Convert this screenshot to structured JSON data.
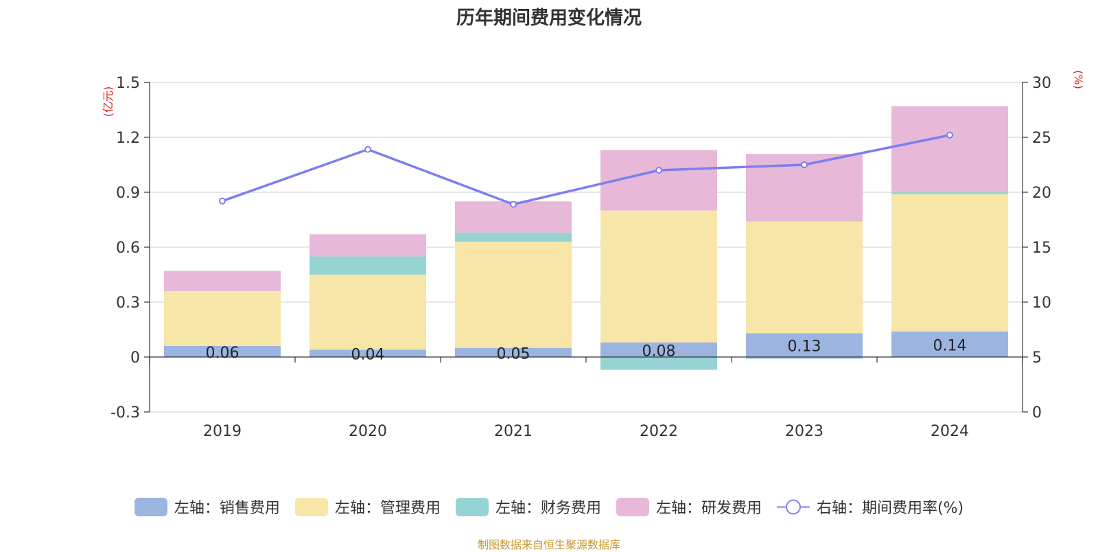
{
  "title": "历年期间费用变化情况",
  "source_note": "制图数据来自恒生聚源数据库",
  "chart_data": {
    "type": "bar",
    "stacked": true,
    "title": "历年期间费用变化情况",
    "categories": [
      "2019",
      "2020",
      "2021",
      "2022",
      "2023",
      "2024"
    ],
    "left_axis": {
      "unit": "(亿元)",
      "ylim": [
        -0.3,
        1.5
      ],
      "ticks": [
        "-0.3",
        "0",
        "0.3",
        "0.6",
        "0.9",
        "1.2",
        "1.5"
      ]
    },
    "right_axis": {
      "unit": "(%)",
      "ylim": [
        0,
        30
      ],
      "ticks": [
        "0",
        "5",
        "10",
        "15",
        "20",
        "25",
        "30"
      ]
    },
    "series": [
      {
        "name": "左轴：销售费用",
        "axis": "left",
        "type": "bar",
        "color": "#9bb5e0",
        "values": [
          0.06,
          0.04,
          0.05,
          0.08,
          0.13,
          0.14
        ],
        "labels": [
          "0.06",
          "0.04",
          "0.05",
          "0.08",
          "0.13",
          "0.14"
        ]
      },
      {
        "name": "左轴：管理费用",
        "axis": "left",
        "type": "bar",
        "color": "#f8e6a8",
        "values": [
          0.3,
          0.41,
          0.58,
          0.72,
          0.61,
          0.75
        ]
      },
      {
        "name": "左轴：财务费用",
        "axis": "left",
        "type": "bar",
        "color": "#96d4d4",
        "values": [
          0.0,
          0.1,
          0.05,
          -0.07,
          -0.01,
          0.01
        ]
      },
      {
        "name": "左轴：研发费用",
        "axis": "left",
        "type": "bar",
        "color": "#e8b8d8",
        "values": [
          0.11,
          0.12,
          0.17,
          0.33,
          0.37,
          0.47
        ]
      },
      {
        "name": "右轴：期间费用率(%)",
        "axis": "right",
        "type": "line",
        "color": "#7b7ff0",
        "values": [
          19.2,
          23.9,
          18.9,
          22.0,
          22.5,
          25.2
        ]
      }
    ],
    "grid": true,
    "legend_position": "bottom"
  }
}
